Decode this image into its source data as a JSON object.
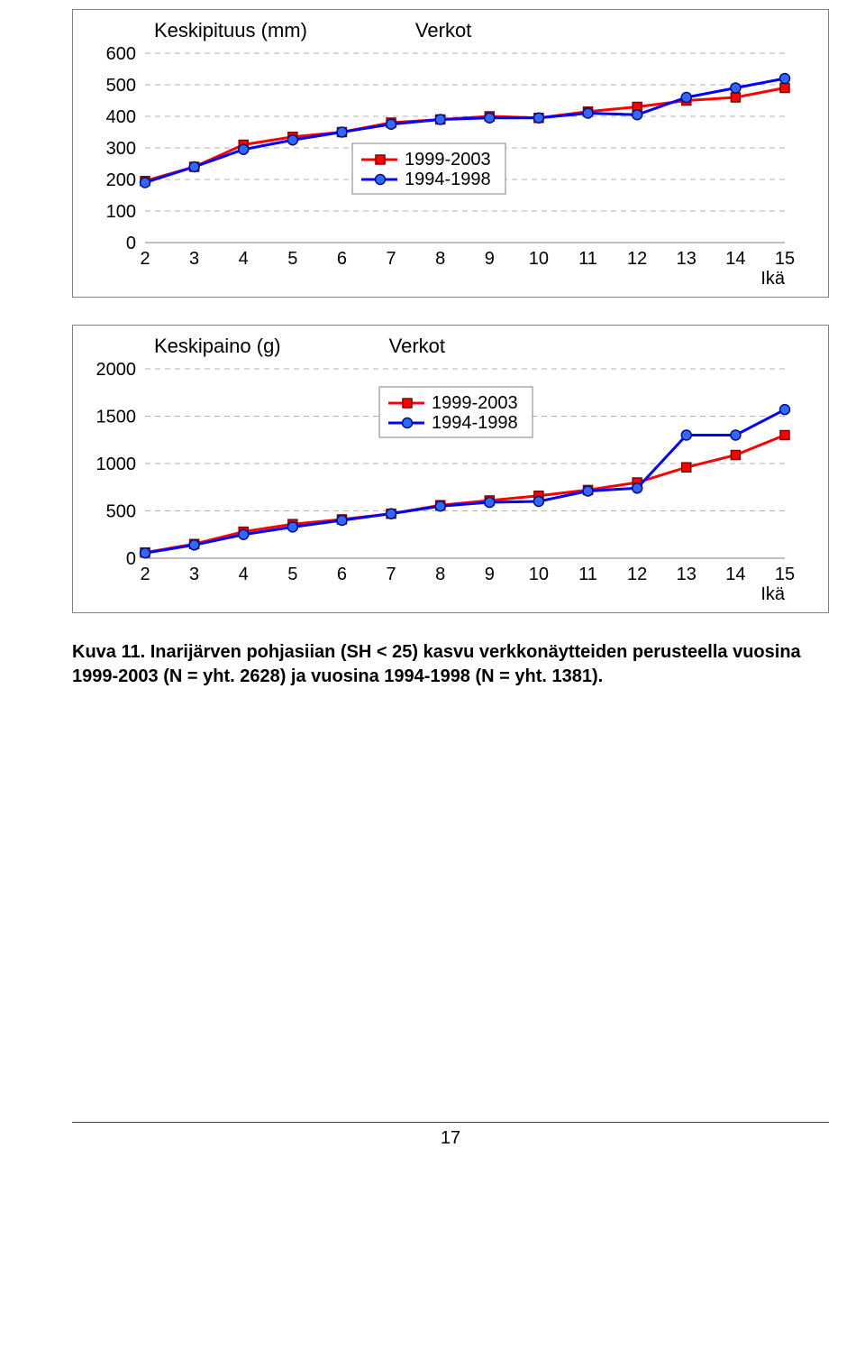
{
  "chart1": {
    "type": "line",
    "series_label_a": "Keskipituus (mm)",
    "title": "Verkot",
    "x_values": [
      2,
      3,
      4,
      5,
      6,
      7,
      8,
      9,
      10,
      11,
      12,
      13,
      14,
      15
    ],
    "x_axis_right_label": "Ikä",
    "ylim": [
      0,
      600
    ],
    "ytick_step": 100,
    "legend": {
      "a": "1999-2003",
      "b": "1994-1998"
    },
    "series": {
      "s1999_2003": {
        "color": "#ff0000",
        "marker_fill": "#ff0000",
        "marker_border": "#800000",
        "marker": "square",
        "values": [
          195,
          240,
          310,
          335,
          350,
          380,
          390,
          400,
          395,
          415,
          430,
          450,
          460,
          490
        ]
      },
      "s1994_1998": {
        "color": "#0000ff",
        "marker_fill": "#3366ff",
        "marker_border": "#001080",
        "marker": "circle",
        "values": [
          190,
          240,
          295,
          325,
          350,
          375,
          390,
          395,
          395,
          410,
          405,
          460,
          490,
          520
        ]
      }
    },
    "grid_color": "#b0b0b0",
    "background": "#ffffff",
    "line_width": 3,
    "title_fontsize": 22,
    "label_fontsize": 20
  },
  "chart2": {
    "type": "line",
    "series_label_a": "Keskipaino (g)",
    "title": "Verkot",
    "x_values": [
      2,
      3,
      4,
      5,
      6,
      7,
      8,
      9,
      10,
      11,
      12,
      13,
      14,
      15
    ],
    "x_axis_right_label": "Ikä",
    "ylim": [
      0,
      2000
    ],
    "ytick_step": 500,
    "legend": {
      "a": "1999-2003",
      "b": "1994-1998"
    },
    "series": {
      "s1999_2003": {
        "color": "#ff0000",
        "marker_fill": "#ff0000",
        "marker_border": "#800000",
        "marker": "square",
        "values": [
          60,
          150,
          280,
          360,
          410,
          470,
          560,
          610,
          660,
          720,
          800,
          960,
          1090,
          1300
        ]
      },
      "s1994_1998": {
        "color": "#0000ff",
        "marker_fill": "#3366ff",
        "marker_border": "#001080",
        "marker": "circle",
        "values": [
          55,
          140,
          250,
          330,
          400,
          470,
          550,
          590,
          600,
          710,
          740,
          1300,
          1300,
          1570
        ]
      }
    },
    "grid_color": "#b0b0b0",
    "background": "#ffffff",
    "line_width": 3,
    "title_fontsize": 22,
    "label_fontsize": 20
  },
  "caption": "Kuva 11. Inarijärven pohjasiian (SH < 25) kasvu verkkonäytteiden perusteella vuosina 1999-2003 (N = yht. 2628) ja vuosina 1994-1998 (N = yht. 1381).",
  "page_number": "17"
}
